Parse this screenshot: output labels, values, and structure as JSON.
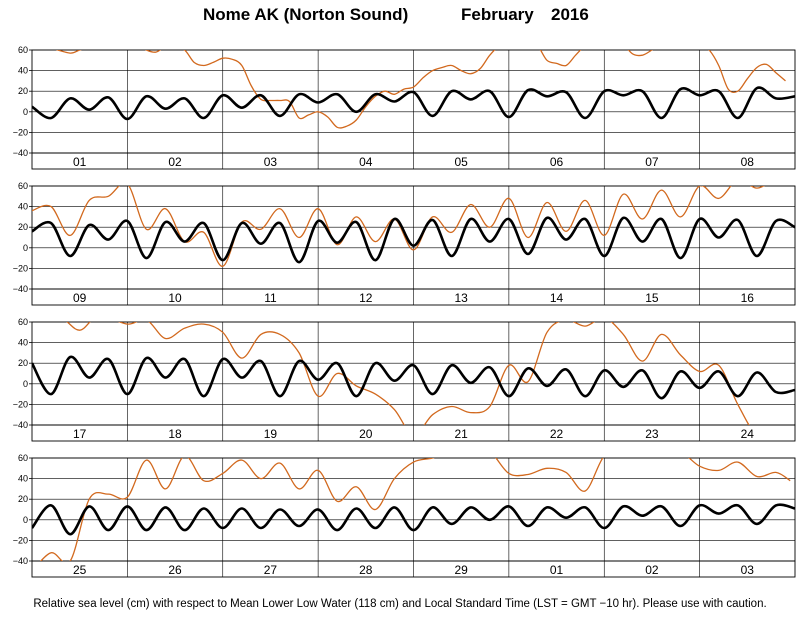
{
  "title": {
    "station": "Nome AK (Norton Sound)",
    "month": "February",
    "year": "2016"
  },
  "footer": "Relative sea level (cm) with respect to Mean Lower Low Water (118 cm) and Local Standard Time (LST = GMT −10 hr). Please use with caution.",
  "colors": {
    "predicted": "#000000",
    "observed": "#d2691e",
    "grid": "#000000"
  },
  "chart_data": {
    "type": "line",
    "ylim": [
      -40,
      60
    ],
    "yticks": [
      "60",
      "40",
      "20",
      "0",
      "−20",
      "−40"
    ],
    "x_unit": "days",
    "panels": [
      {
        "days": [
          "01",
          "02",
          "03",
          "04",
          "05",
          "06",
          "07",
          "08"
        ],
        "series": [
          {
            "role": "predicted",
            "x": [
              0.0,
              0.2,
              0.4,
              0.6,
              0.8,
              1.0,
              1.2,
              1.4,
              1.6,
              1.8,
              2.0,
              2.2,
              2.4,
              2.6,
              2.8,
              3.0,
              3.2,
              3.4,
              3.6,
              3.8,
              4.0,
              4.2,
              4.4,
              4.6,
              4.8,
              5.0,
              5.2,
              5.4,
              5.6,
              5.8,
              6.0,
              6.2,
              6.4,
              6.6,
              6.8,
              7.0,
              7.2,
              7.4,
              7.6,
              7.8,
              8.0
            ],
            "y": [
              5,
              -6,
              13,
              2,
              14,
              -7,
              15,
              3,
              13,
              -6,
              16,
              4,
              16,
              -4,
              17,
              9,
              17,
              0,
              17,
              10,
              19,
              -4,
              20,
              12,
              20,
              -5,
              21,
              15,
              19,
              -6,
              20,
              16,
              20,
              -6,
              22,
              16,
              20,
              -6,
              23,
              13,
              15
            ]
          },
          {
            "role": "observed",
            "x": [
              0.2,
              0.4,
              0.5,
              0.6,
              0.7,
              0.8,
              0.9,
              1.0,
              1.1,
              1.2,
              1.3,
              1.4,
              1.5,
              1.6,
              1.7,
              1.8,
              1.9,
              2.0,
              2.1,
              2.2,
              2.3,
              2.4,
              2.5,
              2.6,
              2.7,
              2.8,
              2.9,
              3.0,
              3.1,
              3.2,
              3.3,
              3.4,
              3.5,
              3.6,
              3.7,
              3.8,
              3.9,
              4.0,
              4.1,
              4.2,
              4.3,
              4.4,
              4.5,
              4.6,
              4.7,
              4.8,
              4.9,
              5.0,
              5.1,
              5.2,
              5.3,
              5.4,
              5.5,
              5.6,
              5.7,
              5.8,
              5.9,
              6.0,
              6.1,
              6.2,
              6.3,
              6.4,
              6.5,
              6.6,
              6.7,
              6.8,
              6.9,
              7.0,
              7.1,
              7.2,
              7.3,
              7.4,
              7.5,
              7.6,
              7.7,
              7.8,
              7.9
            ],
            "y": [
              62,
              57,
              60,
              62,
              62,
              64,
              66,
              66,
              66,
              60,
              58,
              63,
              62,
              60,
              48,
              45,
              48,
              52,
              51,
              45,
              25,
              12,
              11,
              11,
              10,
              -6,
              -3,
              0,
              -5,
              -15,
              -14,
              -8,
              5,
              15,
              20,
              17,
              22,
              24,
              33,
              40,
              43,
              45,
              40,
              37,
              42,
              55,
              64,
              66,
              66,
              66,
              64,
              50,
              47,
              45,
              55,
              64,
              66,
              66,
              66,
              65,
              56,
              55,
              60,
              66,
              66,
              66,
              66,
              66,
              60,
              45,
              22,
              20,
              32,
              43,
              46,
              38,
              30
            ]
          }
        ]
      },
      {
        "days": [
          "09",
          "10",
          "11",
          "12",
          "13",
          "14",
          "15",
          "16"
        ],
        "series": [
          {
            "role": "predicted",
            "x": [
              0.0,
              0.2,
              0.4,
              0.6,
              0.8,
              1.0,
              1.2,
              1.4,
              1.6,
              1.8,
              2.0,
              2.2,
              2.4,
              2.6,
              2.8,
              3.0,
              3.2,
              3.4,
              3.6,
              3.8,
              4.0,
              4.2,
              4.4,
              4.6,
              4.8,
              5.0,
              5.2,
              5.4,
              5.6,
              5.8,
              6.0,
              6.2,
              6.4,
              6.6,
              6.8,
              7.0,
              7.2,
              7.4,
              7.6,
              7.8,
              8.0
            ],
            "y": [
              16,
              24,
              -8,
              22,
              8,
              26,
              -10,
              25,
              6,
              24,
              -12,
              24,
              4,
              24,
              -14,
              26,
              5,
              25,
              -12,
              28,
              2,
              27,
              -8,
              28,
              6,
              28,
              -6,
              29,
              8,
              28,
              -8,
              29,
              6,
              28,
              -10,
              28,
              10,
              27,
              -8,
              26,
              20
            ]
          },
          {
            "role": "observed",
            "x": [
              0.0,
              0.2,
              0.4,
              0.6,
              0.8,
              1.0,
              1.2,
              1.4,
              1.6,
              1.8,
              2.0,
              2.2,
              2.4,
              2.6,
              2.8,
              3.0,
              3.2,
              3.4,
              3.6,
              3.8,
              4.0,
              4.2,
              4.4,
              4.6,
              4.8,
              5.0,
              5.2,
              5.4,
              5.6,
              5.8,
              6.0,
              6.2,
              6.4,
              6.6,
              6.8,
              7.0,
              7.2,
              7.4,
              7.6,
              7.8,
              8.0
            ],
            "y": [
              36,
              40,
              12,
              46,
              50,
              62,
              18,
              38,
              6,
              15,
              -18,
              25,
              18,
              38,
              10,
              38,
              3,
              30,
              6,
              28,
              -2,
              30,
              15,
              42,
              20,
              48,
              10,
              44,
              16,
              46,
              12,
              52,
              28,
              56,
              30,
              60,
              48,
              66,
              58,
              66,
              66
            ]
          }
        ]
      },
      {
        "days": [
          "17",
          "18",
          "19",
          "20",
          "21",
          "22",
          "23",
          "24"
        ],
        "series": [
          {
            "role": "predicted",
            "x": [
              0.0,
              0.2,
              0.4,
              0.6,
              0.8,
              1.0,
              1.2,
              1.4,
              1.6,
              1.8,
              2.0,
              2.2,
              2.4,
              2.6,
              2.8,
              3.0,
              3.2,
              3.4,
              3.6,
              3.8,
              4.0,
              4.2,
              4.4,
              4.6,
              4.8,
              5.0,
              5.2,
              5.4,
              5.6,
              5.8,
              6.0,
              6.2,
              6.4,
              6.6,
              6.8,
              7.0,
              7.2,
              7.4,
              7.6,
              7.8,
              8.0
            ],
            "y": [
              20,
              -10,
              26,
              6,
              24,
              -10,
              25,
              6,
              24,
              -12,
              24,
              6,
              22,
              -12,
              22,
              4,
              20,
              -12,
              20,
              3,
              18,
              -10,
              18,
              1,
              16,
              -12,
              15,
              -2,
              14,
              -12,
              13,
              -3,
              13,
              -14,
              12,
              -4,
              12,
              -12,
              11,
              -8,
              -6
            ]
          },
          {
            "role": "observed",
            "x": [
              0.0,
              0.3,
              0.5,
              0.7,
              1.0,
              1.2,
              1.4,
              1.6,
              1.8,
              2.0,
              2.2,
              2.4,
              2.6,
              2.8,
              3.0,
              3.2,
              3.4,
              3.6,
              3.8,
              4.0,
              4.2,
              4.4,
              4.6,
              4.8,
              5.0,
              5.2,
              5.4,
              5.6,
              5.8,
              6.0,
              6.2,
              6.4,
              6.6,
              6.8,
              7.0,
              7.2,
              7.4,
              7.6,
              7.8
            ],
            "y": [
              66,
              64,
              52,
              66,
              58,
              62,
              44,
              54,
              58,
              50,
              25,
              48,
              48,
              30,
              -12,
              10,
              -2,
              -10,
              -25,
              -50,
              -30,
              -22,
              -28,
              -22,
              18,
              2,
              50,
              62,
              56,
              64,
              48,
              22,
              48,
              28,
              12,
              18,
              -20,
              -50,
              -50
            ]
          }
        ]
      },
      {
        "days": [
          "25",
          "26",
          "27",
          "28",
          "29",
          "01",
          "02",
          "03"
        ],
        "series": [
          {
            "role": "predicted",
            "x": [
              0.0,
              0.2,
              0.4,
              0.6,
              0.8,
              1.0,
              1.2,
              1.4,
              1.6,
              1.8,
              2.0,
              2.2,
              2.4,
              2.6,
              2.8,
              3.0,
              3.2,
              3.4,
              3.6,
              3.8,
              4.0,
              4.2,
              4.4,
              4.6,
              4.8,
              5.0,
              5.2,
              5.4,
              5.6,
              5.8,
              6.0,
              6.2,
              6.4,
              6.6,
              6.8,
              7.0,
              7.2,
              7.4,
              7.6,
              7.8,
              8.0
            ],
            "y": [
              -8,
              14,
              -14,
              13,
              -10,
              13,
              -10,
              12,
              -10,
              11,
              -8,
              11,
              -8,
              10,
              -6,
              10,
              -10,
              11,
              -8,
              12,
              -10,
              12,
              -4,
              12,
              0,
              13,
              -6,
              12,
              2,
              12,
              -8,
              13,
              4,
              13,
              -6,
              14,
              6,
              14,
              -4,
              14,
              11
            ]
          },
          {
            "role": "observed",
            "x": [
              0.0,
              0.2,
              0.4,
              0.6,
              0.8,
              1.0,
              1.2,
              1.4,
              1.6,
              1.8,
              2.0,
              2.2,
              2.4,
              2.6,
              2.8,
              3.0,
              3.2,
              3.4,
              3.6,
              3.8,
              4.0,
              4.2,
              4.4,
              4.6,
              4.8,
              5.0,
              5.2,
              5.4,
              5.6,
              5.8,
              6.0,
              6.2,
              6.4,
              6.6,
              6.8,
              7.0,
              7.2,
              7.4,
              7.6,
              7.8,
              7.95
            ],
            "y": [
              -50,
              -32,
              -40,
              20,
              25,
              22,
              58,
              30,
              62,
              38,
              45,
              58,
              40,
              55,
              30,
              48,
              18,
              32,
              10,
              40,
              56,
              60,
              66,
              66,
              66,
              45,
              44,
              50,
              46,
              28,
              62,
              66,
              66,
              66,
              66,
              52,
              48,
              56,
              42,
              46,
              38
            ]
          }
        ]
      }
    ]
  }
}
